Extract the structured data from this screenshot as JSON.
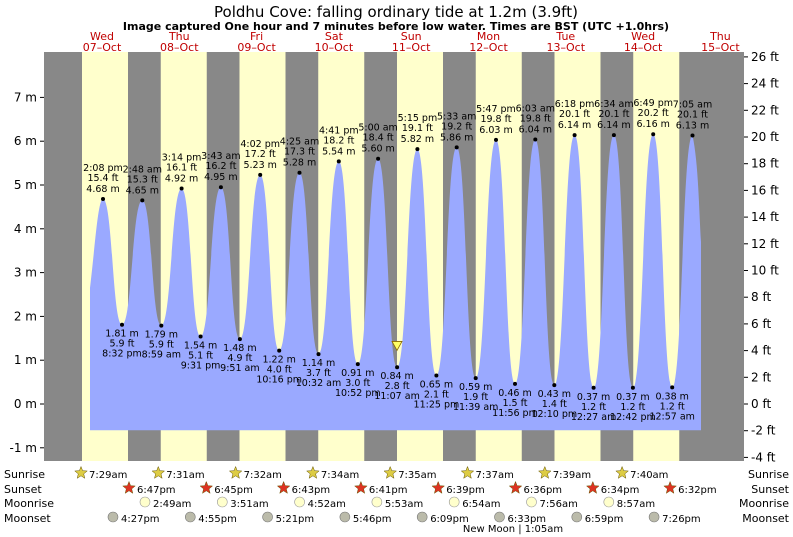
{
  "header": {
    "title": "Poldhu Cove: falling  ordinary tide at 1.2m (3.9ft)",
    "subtitle": "Image captured One hour and 7 minutes before low water. Times are BST (UTC +1.0hrs)"
  },
  "chart_data": {
    "type": "area",
    "left_axis": {
      "unit": "m",
      "ticks": [
        "-1 m",
        "0 m",
        "1 m",
        "2 m",
        "3 m",
        "4 m",
        "5 m",
        "6 m",
        "7 m"
      ],
      "range": [
        -1.3,
        7.8
      ]
    },
    "right_axis": {
      "unit": "ft",
      "ticks": [
        "-4 ft",
        "-2 ft",
        "0 ft",
        "2 ft",
        "4 ft",
        "6 ft",
        "8 ft",
        "10 ft",
        "12 ft",
        "14 ft",
        "16 ft",
        "18 ft",
        "20 ft",
        "22 ft",
        "24 ft",
        "26 ft"
      ]
    },
    "days": [
      {
        "dow": "Wed",
        "date": "07–Oct"
      },
      {
        "dow": "Thu",
        "date": "08–Oct"
      },
      {
        "dow": "Fri",
        "date": "09–Oct"
      },
      {
        "dow": "Sat",
        "date": "10–Oct"
      },
      {
        "dow": "Sun",
        "date": "11–Oct"
      },
      {
        "dow": "Mon",
        "date": "12–Oct"
      },
      {
        "dow": "Tue",
        "date": "13–Oct"
      },
      {
        "dow": "Wed",
        "date": "14–Oct"
      },
      {
        "dow": "Thu",
        "date": "15–Oct"
      }
    ],
    "high_tides": [
      {
        "time": "2:08 pm",
        "ft": "15.4 ft",
        "m": 4.68,
        "m_label": "4.68 m"
      },
      {
        "time": "2:48 am",
        "ft": "15.3 ft",
        "m": 4.65,
        "m_label": "4.65 m"
      },
      {
        "time": "3:14 pm",
        "ft": "16.1 ft",
        "m": 4.92,
        "m_label": "4.92 m"
      },
      {
        "time": "3:43 am",
        "ft": "16.2 ft",
        "m": 4.95,
        "m_label": "4.95 m"
      },
      {
        "time": "4:02 pm",
        "ft": "17.2 ft",
        "m": 5.23,
        "m_label": "5.23 m"
      },
      {
        "time": "4:25 am",
        "ft": "17.3 ft",
        "m": 5.28,
        "m_label": "5.28 m"
      },
      {
        "time": "4:41 pm",
        "ft": "18.2 ft",
        "m": 5.54,
        "m_label": "5.54 m"
      },
      {
        "time": "5:00 am",
        "ft": "18.4 ft",
        "m": 5.6,
        "m_label": "5.60 m"
      },
      {
        "time": "5:15 pm",
        "ft": "19.1 ft",
        "m": 5.82,
        "m_label": "5.82 m"
      },
      {
        "time": "5:33 am",
        "ft": "19.2 ft",
        "m": 5.86,
        "m_label": "5.86 m"
      },
      {
        "time": "5:47 pm",
        "ft": "19.8 ft",
        "m": 6.03,
        "m_label": "6.03 m"
      },
      {
        "time": "6:03 am",
        "ft": "19.8 ft",
        "m": 6.04,
        "m_label": "6.04 m"
      },
      {
        "time": "6:18 pm",
        "ft": "20.1 ft",
        "m": 6.14,
        "m_label": "6.14 m"
      },
      {
        "time": "6:34 am",
        "ft": "20.1 ft",
        "m": 6.14,
        "m_label": "6.14 m"
      },
      {
        "time": "6:49 pm",
        "ft": "20.2 ft",
        "m": 6.16,
        "m_label": "6.16 m"
      },
      {
        "time": "7:05 am",
        "ft": "20.1 ft",
        "m": 6.13,
        "m_label": "6.13 m"
      }
    ],
    "low_tides": [
      {
        "m": 1.81,
        "m_label": "1.81 m",
        "ft": "5.9 ft",
        "time": "8:32 pm"
      },
      {
        "m": 1.79,
        "m_label": "1.79 m",
        "ft": "5.9 ft",
        "time": "8:59 am"
      },
      {
        "m": 1.54,
        "m_label": "1.54 m",
        "ft": "5.1 ft",
        "time": "9:31 pm"
      },
      {
        "m": 1.48,
        "m_label": "1.48 m",
        "ft": "4.9 ft",
        "time": "9:51 am"
      },
      {
        "m": 1.22,
        "m_label": "1.22 m",
        "ft": "4.0 ft",
        "time": "10:16 pm"
      },
      {
        "m": 1.14,
        "m_label": "1.14 m",
        "ft": "3.7 ft",
        "time": "10:32 am"
      },
      {
        "m": 0.91,
        "m_label": "0.91 m",
        "ft": "3.0 ft",
        "time": "10:52 pm"
      },
      {
        "m": 0.84,
        "m_label": "0.84 m",
        "ft": "2.8 ft",
        "time": "11:07 am"
      },
      {
        "m": 0.65,
        "m_label": "0.65 m",
        "ft": "2.1 ft",
        "time": "11:25 pm"
      },
      {
        "m": 0.59,
        "m_label": "0.59 m",
        "ft": "1.9 ft",
        "time": "11:39 am"
      },
      {
        "m": 0.46,
        "m_label": "0.46 m",
        "ft": "1.5 ft",
        "time": "11:56 pm"
      },
      {
        "m": 0.43,
        "m_label": "0.43 m",
        "ft": "1.4 ft",
        "time": "12:10 pm"
      },
      {
        "m": 0.37,
        "m_label": "0.37 m",
        "ft": "1.2 ft",
        "time": "12:27 am"
      },
      {
        "m": 0.37,
        "m_label": "0.37 m",
        "ft": "1.2 ft",
        "time": "12:42 pm"
      },
      {
        "m": 0.38,
        "m_label": "0.38 m",
        "ft": "1.2 ft",
        "time": "12:57 am"
      }
    ],
    "current_level_m": 1.2,
    "colors": {
      "water": "#9aa9ff",
      "daylight": "#ffffcc",
      "night": "#888888",
      "day_label": "#c00000",
      "marker": "#ffff66",
      "sunrise_star": "#ddcc44",
      "sunset_star": "#dd3322"
    },
    "sun_moon": {
      "row_labels": [
        "Sunrise",
        "Sunset",
        "Moonrise",
        "Moonset"
      ],
      "sunrise": [
        "7:29am",
        "7:31am",
        "7:32am",
        "7:34am",
        "7:35am",
        "7:37am",
        "7:39am",
        "7:40am"
      ],
      "sunset": [
        "6:47pm",
        "6:45pm",
        "6:43pm",
        "6:41pm",
        "6:39pm",
        "6:36pm",
        "6:34pm",
        "6:32pm"
      ],
      "moonrise": [
        "2:49am",
        "3:51am",
        "4:52am",
        "5:53am",
        "6:54am",
        "7:56am",
        "8:57am"
      ],
      "moonset": [
        "4:27pm",
        "4:55pm",
        "5:21pm",
        "5:46pm",
        "6:09pm",
        "6:33pm",
        "6:59pm",
        "7:26pm"
      ],
      "new_moon_note": "New Moon | 1:05am"
    }
  }
}
